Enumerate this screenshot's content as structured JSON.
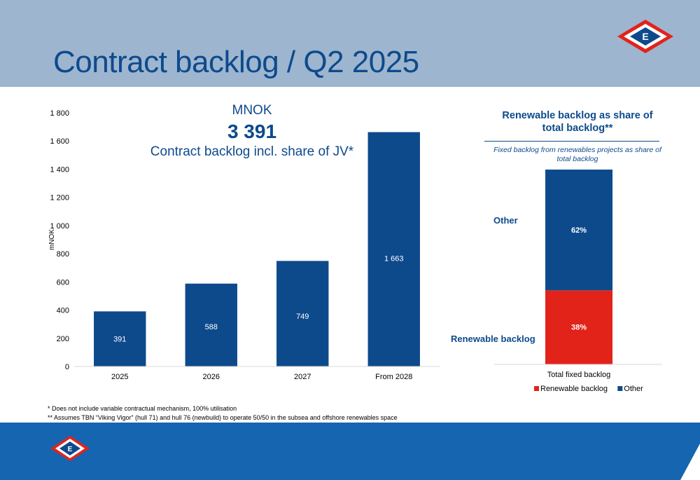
{
  "page": {
    "title": "Contract backlog / Q2 2025",
    "logo_letter": "E"
  },
  "kpi": {
    "unit": "MNOK",
    "value": "3 391",
    "label": "Contract backlog incl. share of JV*"
  },
  "renewables_panel": {
    "title": "Renewable backlog as share of total backlog**",
    "subtitle": "Fixed backlog from renewables projects as share of total backlog",
    "label_other": "Other",
    "label_renewable": "Renewable backlog"
  },
  "footnotes": {
    "note1": "* Does not include variable contractual mechanism, 100% utilisation",
    "note2": "** Assumes TBN “Viking Vigor” (hull 71) and hull 76 (newbuild) to operate 50/50 in the subsea and offshore renewables space"
  },
  "colors": {
    "primary": "#0d4a8c",
    "renewable": "#e2231a",
    "header_band": "#9db5cf",
    "footer_band": "#1565b0"
  },
  "chart_data": [
    {
      "type": "bar",
      "categories": [
        "2025",
        "2026",
        "2027",
        "From 2028"
      ],
      "values": [
        391,
        588,
        749,
        1663
      ],
      "data_labels": [
        "391",
        "588",
        "749",
        "1 663"
      ],
      "ylabel": "mNOK",
      "ylim": [
        0,
        1800
      ],
      "yticks": [
        0,
        200,
        400,
        600,
        800,
        1000,
        1200,
        1400,
        1600,
        1800
      ],
      "ytick_labels": [
        "0",
        "200",
        "400",
        "600",
        "800",
        "1 000",
        "1 200",
        "1 400",
        "1 600",
        "1 800"
      ],
      "grid": false
    },
    {
      "type": "bar",
      "stacked": true,
      "categories": [
        "Total fixed backlog"
      ],
      "series": [
        {
          "name": "Renewable backlog",
          "values": [
            38
          ],
          "label": "38%",
          "color": "#e2231a"
        },
        {
          "name": "Other",
          "values": [
            62
          ],
          "label": "62%",
          "color": "#0d4a8c"
        }
      ],
      "ylim": [
        0,
        100
      ],
      "legend": "bottom",
      "grid": false
    }
  ]
}
